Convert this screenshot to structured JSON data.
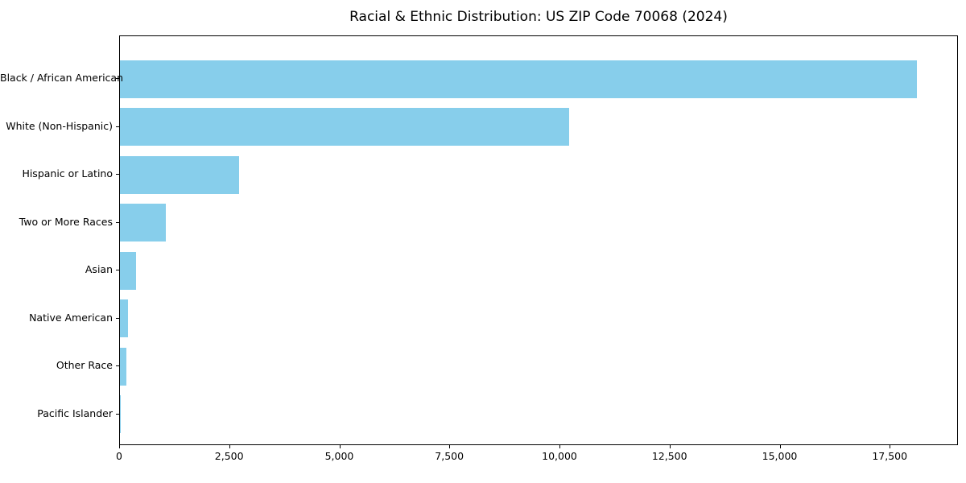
{
  "chart_data": {
    "type": "bar",
    "orientation": "horizontal",
    "title": "Racial & Ethnic Distribution: US ZIP Code 70068 (2024)",
    "xlabel": "",
    "ylabel": "",
    "categories": [
      "Black / African American",
      "White (Non-Hispanic)",
      "Hispanic or Latino",
      "Two or More Races",
      "Asian",
      "Native American",
      "Other Race",
      "Pacific Islander"
    ],
    "values": [
      18100,
      10200,
      2700,
      1050,
      370,
      175,
      140,
      15
    ],
    "xlim": [
      0,
      19050
    ],
    "xtick_values": [
      0,
      2500,
      5000,
      7500,
      10000,
      12500,
      15000,
      17500
    ],
    "xtick_labels": [
      "0",
      "2,500",
      "5,000",
      "7,500",
      "10,000",
      "12,500",
      "15,000",
      "17,500"
    ],
    "bar_color": "#87CEEB",
    "grid": false,
    "legend": false,
    "background_color": "#ffffff",
    "text_color": "#000000"
  }
}
